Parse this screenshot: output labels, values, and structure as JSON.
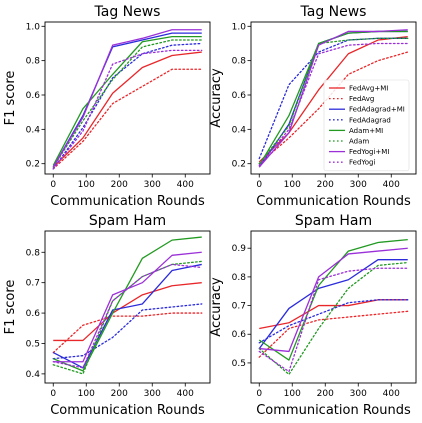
{
  "series_styles": [
    {
      "name": "FedAvg+MI",
      "color": "#e8272a",
      "dash": "solid"
    },
    {
      "name": "FedAvg",
      "color": "#e8272a",
      "dash": "dotted"
    },
    {
      "name": "FedAdagrad+MI",
      "color": "#2b2bdc",
      "dash": "solid"
    },
    {
      "name": "FedAdagrad",
      "color": "#2b2bdc",
      "dash": "dotted"
    },
    {
      "name": "Adam+MI",
      "color": "#229a22",
      "dash": "solid"
    },
    {
      "name": "Adam",
      "color": "#229a22",
      "dash": "dotted"
    },
    {
      "name": "FedYogi+MI",
      "color": "#9b30d8",
      "dash": "solid"
    },
    {
      "name": "FedYogi",
      "color": "#9b30d8",
      "dash": "dotted"
    }
  ],
  "chart_data": [
    {
      "type": "line",
      "title": "Tag News",
      "xlabel": "Communication Rounds",
      "ylabel": "F1 score",
      "x": [
        0,
        90,
        180,
        270,
        360,
        450
      ],
      "xticks": [
        0,
        100,
        200,
        300,
        400
      ],
      "xlim": [
        -25,
        475
      ],
      "ylim": [
        0.14,
        1.025
      ],
      "yticks": [
        "0.2",
        "0.4",
        "0.6",
        "0.8",
        "1.0"
      ],
      "ytick_values": [
        0.2,
        0.4,
        0.6,
        0.8,
        1.0
      ],
      "legend": false,
      "grid": false,
      "series": [
        {
          "name": "FedAvg+MI",
          "values": [
            0.18,
            0.35,
            0.61,
            0.76,
            0.83,
            0.85
          ]
        },
        {
          "name": "FedAvg",
          "values": [
            0.17,
            0.33,
            0.55,
            0.65,
            0.75,
            0.75
          ]
        },
        {
          "name": "FedAdagrad+MI",
          "values": [
            0.18,
            0.48,
            0.88,
            0.92,
            0.96,
            0.96
          ]
        },
        {
          "name": "FedAdagrad",
          "values": [
            0.17,
            0.41,
            0.7,
            0.84,
            0.89,
            0.9
          ]
        },
        {
          "name": "Adam+MI",
          "values": [
            0.19,
            0.52,
            0.72,
            0.91,
            0.94,
            0.94
          ]
        },
        {
          "name": "Adam",
          "values": [
            0.18,
            0.45,
            0.69,
            0.88,
            0.92,
            0.92
          ]
        },
        {
          "name": "FedYogi+MI",
          "values": [
            0.18,
            0.47,
            0.89,
            0.93,
            0.98,
            0.98
          ]
        },
        {
          "name": "FedYogi",
          "values": [
            0.17,
            0.39,
            0.78,
            0.84,
            0.86,
            0.86
          ]
        }
      ]
    },
    {
      "type": "line",
      "title": "Tag News",
      "xlabel": "Communication Rounds",
      "ylabel": "Accuracy",
      "x": [
        0,
        90,
        180,
        270,
        360,
        450
      ],
      "xticks": [
        0,
        100,
        200,
        300,
        400
      ],
      "xlim": [
        -25,
        475
      ],
      "ylim": [
        0.14,
        1.025
      ],
      "yticks": [
        "0.2",
        "0.4",
        "0.6",
        "0.8",
        "1.0"
      ],
      "ytick_values": [
        0.2,
        0.4,
        0.6,
        0.8,
        1.0
      ],
      "legend": true,
      "legend_position": "center-right",
      "grid": false,
      "series": [
        {
          "name": "FedAvg+MI",
          "values": [
            0.21,
            0.38,
            0.63,
            0.84,
            0.92,
            0.94
          ]
        },
        {
          "name": "FedAvg",
          "values": [
            0.2,
            0.35,
            0.52,
            0.72,
            0.8,
            0.85
          ]
        },
        {
          "name": "FedAdagrad+MI",
          "values": [
            0.18,
            0.43,
            0.9,
            0.96,
            0.97,
            0.97
          ]
        },
        {
          "name": "FedAdagrad",
          "values": [
            0.23,
            0.66,
            0.85,
            0.92,
            0.93,
            0.93
          ]
        },
        {
          "name": "Adam+MI",
          "values": [
            0.19,
            0.48,
            0.9,
            0.96,
            0.97,
            0.97
          ]
        },
        {
          "name": "Adam",
          "values": [
            0.2,
            0.42,
            0.9,
            0.92,
            0.93,
            0.93
          ]
        },
        {
          "name": "FedYogi+MI",
          "values": [
            0.18,
            0.38,
            0.89,
            0.97,
            0.97,
            0.98
          ]
        },
        {
          "name": "FedYogi",
          "values": [
            0.19,
            0.4,
            0.84,
            0.89,
            0.9,
            0.9
          ]
        }
      ]
    },
    {
      "type": "line",
      "title": "Spam Ham",
      "xlabel": "Communication Rounds",
      "ylabel": "F1 score",
      "x": [
        0,
        90,
        180,
        270,
        360,
        450
      ],
      "xticks": [
        0,
        100,
        200,
        300,
        400
      ],
      "xlim": [
        -25,
        475
      ],
      "ylim": [
        0.37,
        0.87
      ],
      "yticks": [
        "0.4",
        "0.5",
        "0.6",
        "0.7",
        "0.8"
      ],
      "ytick_values": [
        0.4,
        0.5,
        0.6,
        0.7,
        0.8
      ],
      "legend": false,
      "grid": false,
      "series": [
        {
          "name": "FedAvg+MI",
          "values": [
            0.51,
            0.51,
            0.6,
            0.66,
            0.69,
            0.7
          ]
        },
        {
          "name": "FedAvg",
          "values": [
            0.47,
            0.56,
            0.59,
            0.59,
            0.6,
            0.6
          ]
        },
        {
          "name": "FedAdagrad+MI",
          "values": [
            0.47,
            0.42,
            0.61,
            0.63,
            0.74,
            0.76
          ]
        },
        {
          "name": "FedAdagrad",
          "values": [
            0.45,
            0.46,
            0.52,
            0.61,
            0.62,
            0.63
          ]
        },
        {
          "name": "Adam+MI",
          "values": [
            0.45,
            0.41,
            0.6,
            0.78,
            0.84,
            0.85
          ]
        },
        {
          "name": "Adam",
          "values": [
            0.43,
            0.4,
            0.64,
            0.72,
            0.76,
            0.77
          ]
        },
        {
          "name": "FedYogi+MI",
          "values": [
            0.44,
            0.44,
            0.66,
            0.7,
            0.79,
            0.8
          ]
        },
        {
          "name": "FedYogi",
          "values": [
            0.44,
            0.42,
            0.64,
            0.72,
            0.76,
            0.75
          ]
        }
      ]
    },
    {
      "type": "line",
      "title": "Spam Ham",
      "xlabel": "Communication Rounds",
      "ylabel": "Accuracy",
      "x": [
        0,
        90,
        180,
        270,
        360,
        450
      ],
      "xticks": [
        0,
        100,
        200,
        300,
        400
      ],
      "xlim": [
        -25,
        475
      ],
      "ylim": [
        0.43,
        0.96
      ],
      "yticks": [
        "0.5",
        "0.6",
        "0.7",
        "0.8",
        "0.9"
      ],
      "ytick_values": [
        0.5,
        0.6,
        0.7,
        0.8,
        0.9
      ],
      "legend": false,
      "grid": false,
      "series": [
        {
          "name": "FedAvg+MI",
          "values": [
            0.62,
            0.64,
            0.7,
            0.7,
            0.72,
            0.72
          ]
        },
        {
          "name": "FedAvg",
          "values": [
            0.52,
            0.62,
            0.65,
            0.66,
            0.67,
            0.68
          ]
        },
        {
          "name": "FedAdagrad+MI",
          "values": [
            0.55,
            0.69,
            0.76,
            0.79,
            0.86,
            0.86
          ]
        },
        {
          "name": "FedAdagrad",
          "values": [
            0.57,
            0.63,
            0.67,
            0.71,
            0.72,
            0.72
          ]
        },
        {
          "name": "Adam+MI",
          "values": [
            0.58,
            0.51,
            0.77,
            0.89,
            0.92,
            0.93
          ]
        },
        {
          "name": "Adam",
          "values": [
            0.55,
            0.46,
            0.62,
            0.76,
            0.84,
            0.85
          ]
        },
        {
          "name": "FedYogi+MI",
          "values": [
            0.55,
            0.54,
            0.8,
            0.88,
            0.89,
            0.9
          ]
        },
        {
          "name": "FedYogi",
          "values": [
            0.54,
            0.47,
            0.79,
            0.82,
            0.83,
            0.83
          ]
        }
      ]
    }
  ]
}
